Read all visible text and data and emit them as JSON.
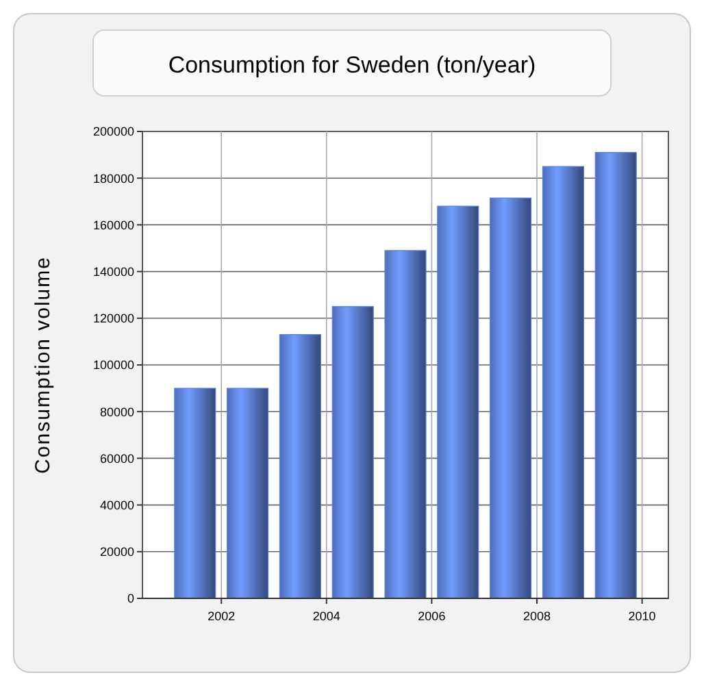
{
  "chart_data": {
    "type": "bar",
    "title": "Consumption for Sweden (ton/year)",
    "ylabel": "Consumption volume",
    "x": [
      2001.5,
      2002.5,
      2003.5,
      2004.5,
      2005.5,
      2006.5,
      2007.5,
      2008.5,
      2009.5
    ],
    "values": [
      90000,
      90000,
      113000,
      125000,
      149000,
      168000,
      171500,
      185000,
      191000
    ],
    "color": "#5b7fd6",
    "xlim": [
      2000.5,
      2010.5
    ],
    "xticks": [
      2002,
      2004,
      2006,
      2008,
      2010
    ],
    "ylim": [
      0,
      200000
    ],
    "yticks": [
      0,
      20000,
      40000,
      60000,
      80000,
      100000,
      120000,
      140000,
      160000,
      180000,
      200000
    ],
    "grid": true
  }
}
